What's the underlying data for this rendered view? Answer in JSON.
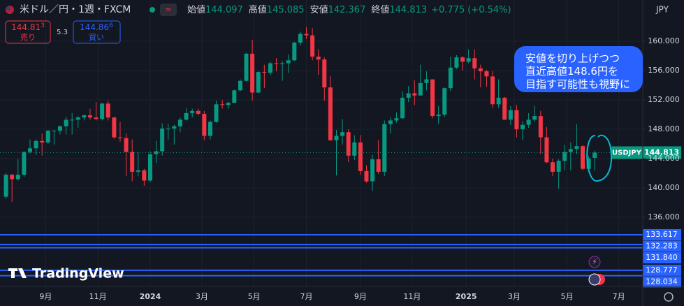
{
  "header": {
    "symbol": "米ドル／円・1週・FXCM",
    "ohlc": [
      {
        "label": "始値",
        "value": 144.097
      },
      {
        "label": "高値",
        "value": 145.085
      },
      {
        "label": "安値",
        "value": 142.367
      },
      {
        "label": "終値",
        "value": 144.813
      }
    ],
    "change": {
      "value": 0.775,
      "label": "+0.775"
    },
    "change_pct": {
      "value": 0.54,
      "label": "(+0.54%)"
    },
    "currency": "JPY"
  },
  "trade": {
    "sell": {
      "price": 144.813,
      "label": "売り"
    },
    "spread": 5.3,
    "buy": {
      "price": 144.866,
      "label": "買い"
    }
  },
  "watermark": "TradingView",
  "chart_data": {
    "type": "candlestick",
    "annotation": [
      "安値を切り上げつつ",
      "直近高値148.6円を",
      "目指す可能性も視野に"
    ],
    "current_price": {
      "symbol": "USDJPY",
      "value": 144.813
    },
    "levels": [
      133.617,
      132.283,
      {
        "value": 131.84,
        "label": "131.840"
      },
      128.777,
      128.034
    ],
    "up_color": "#089981",
    "down_color": "#f23645",
    "level_color": "#2962ff",
    "grid": true,
    "ylim": [
      126.571,
      165.619
    ],
    "yticks": [
      {
        "value": 160,
        "label": "160.000"
      },
      {
        "value": 156,
        "label": "156.000"
      },
      {
        "value": 152,
        "label": "152.000"
      },
      {
        "value": 148,
        "label": "148.000"
      },
      {
        "value": 144,
        "label": "144.000"
      },
      {
        "value": 140,
        "label": "140.000"
      },
      {
        "value": 136,
        "label": "136.000"
      }
    ],
    "xlim": [
      -1,
      106
    ],
    "xticks": [
      {
        "value": 6.6,
        "label": "9月"
      },
      {
        "value": 15.3,
        "label": "11月"
      },
      {
        "value": 24,
        "label": "2024"
      },
      {
        "value": 32.6,
        "label": "3月"
      },
      {
        "value": 41.3,
        "label": "5月"
      },
      {
        "value": 50,
        "label": "7月"
      },
      {
        "value": 59,
        "label": "9月"
      },
      {
        "value": 67.6,
        "label": "11月"
      },
      {
        "value": 76.6,
        "label": "2025"
      },
      {
        "value": 84.6,
        "label": "3月"
      },
      {
        "value": 93.4,
        "label": "5月"
      },
      {
        "value": 102,
        "label": "7月"
      }
    ],
    "candles": {
      "open": [
        138.8,
        141.8,
        141.2,
        141.8,
        144.9,
        145.4,
        146.4,
        146.2,
        147.8,
        147.8,
        148.4,
        149.3,
        149.3,
        149.6,
        149.9,
        149.6,
        149.4,
        151.5,
        149.6,
        146.9,
        146.8,
        144.9,
        142.2,
        142.4,
        141.0,
        144.6,
        145.0,
        148.1,
        148.1,
        148.4,
        149.3,
        150.2,
        150.5,
        150.1,
        147.1,
        149.0,
        151.4,
        151.3,
        151.6,
        153.3,
        154.6,
        158.3,
        153.0,
        155.8,
        155.7,
        157.0,
        156.9,
        157.0,
        157.4,
        159.8,
        161.0,
        160.8,
        157.9,
        157.5,
        153.7,
        146.5,
        147.1,
        147.6,
        144.4,
        146.2,
        142.3,
        140.9,
        143.9,
        142.2,
        148.7,
        149.2,
        149.5,
        152.3,
        152.9,
        152.6,
        154.3,
        154.8,
        149.8,
        150.0,
        153.6,
        156.4,
        157.8,
        157.2,
        157.7,
        156.3,
        155.9,
        155.2,
        151.4,
        152.3,
        149.3,
        150.6,
        148.0,
        148.6,
        149.3,
        149.8,
        146.9,
        143.5,
        142.2,
        143.7,
        144.9,
        145.3,
        145.7,
        142.6,
        144.097
      ],
      "high": [
        142.0,
        141.9,
        143.9,
        145.0,
        146.6,
        146.6,
        147.4,
        147.9,
        147.9,
        148.5,
        149.7,
        150.2,
        149.8,
        150.0,
        150.8,
        151.7,
        151.6,
        151.9,
        149.7,
        149.0,
        147.4,
        146.6,
        144.9,
        142.6,
        145.0,
        146.4,
        148.8,
        148.7,
        148.6,
        149.6,
        150.9,
        150.8,
        150.8,
        150.5,
        149.2,
        151.9,
        152.0,
        151.8,
        153.4,
        154.8,
        158.4,
        160.2,
        155.9,
        156.8,
        157.2,
        157.7,
        157.3,
        158.2,
        159.9,
        161.3,
        161.95,
        161.8,
        158.9,
        157.8,
        155.2,
        147.9,
        149.4,
        148.0,
        147.2,
        147.2,
        143.1,
        144.5,
        146.5,
        149.2,
        149.6,
        150.3,
        153.2,
        153.9,
        154.7,
        156.8,
        155.9,
        154.8,
        151.2,
        153.7,
        157.9,
        158.1,
        158.0,
        158.9,
        158.9,
        156.8,
        156.1,
        155.9,
        154.8,
        152.4,
        151.2,
        151.3,
        149.1,
        150.2,
        151.2,
        150.5,
        148.3,
        144.0,
        143.9,
        145.9,
        146.2,
        148.7,
        145.8,
        144.4,
        145.085
      ],
      "low": [
        138.5,
        138.1,
        141.0,
        141.5,
        144.7,
        144.5,
        144.4,
        146.0,
        145.9,
        147.3,
        147.3,
        147.3,
        148.2,
        149.2,
        149.3,
        149.2,
        149.2,
        149.2,
        146.7,
        146.3,
        141.6,
        140.9,
        141.6,
        140.3,
        140.8,
        143.4,
        144.4,
        146.6,
        145.9,
        147.6,
        149.2,
        149.6,
        149.9,
        146.5,
        146.6,
        148.9,
        150.8,
        150.8,
        151.6,
        153.2,
        154.5,
        151.9,
        152.9,
        153.6,
        155.4,
        155.9,
        154.6,
        155.7,
        157.3,
        159.4,
        160.3,
        157.4,
        155.4,
        151.9,
        146.4,
        141.7,
        145.9,
        143.5,
        143.8,
        141.8,
        140.7,
        139.6,
        141.9,
        141.6,
        147.4,
        148.9,
        149.4,
        151.7,
        151.3,
        152.6,
        153.3,
        149.5,
        148.7,
        149.7,
        153.2,
        156.2,
        156.0,
        157.0,
        154.8,
        153.7,
        153.8,
        150.9,
        150.9,
        149.3,
        148.6,
        146.9,
        146.5,
        148.2,
        149.0,
        144.6,
        143.4,
        141.6,
        139.9,
        142.4,
        142.4,
        144.6,
        142.4,
        142.1,
        142.367
      ],
      "close": [
        141.8,
        141.2,
        141.8,
        144.9,
        145.4,
        146.4,
        146.2,
        147.8,
        147.8,
        148.4,
        149.3,
        149.3,
        149.6,
        149.9,
        149.6,
        149.4,
        151.5,
        149.6,
        146.9,
        146.8,
        144.9,
        142.2,
        142.4,
        141.0,
        144.6,
        145.0,
        148.1,
        148.1,
        148.4,
        149.3,
        150.2,
        150.5,
        150.1,
        147.1,
        149.0,
        151.4,
        151.3,
        151.6,
        153.3,
        154.6,
        158.3,
        153.0,
        155.8,
        155.7,
        157.0,
        156.9,
        157.0,
        157.4,
        159.8,
        161.0,
        160.8,
        157.9,
        157.5,
        153.7,
        146.5,
        147.1,
        147.6,
        144.4,
        146.2,
        142.3,
        140.9,
        143.9,
        142.2,
        148.7,
        149.2,
        149.5,
        152.3,
        152.9,
        152.6,
        154.3,
        154.8,
        149.8,
        150.0,
        153.6,
        156.4,
        157.8,
        157.2,
        157.7,
        156.3,
        155.9,
        155.2,
        151.4,
        152.3,
        149.3,
        150.6,
        148.0,
        148.6,
        149.3,
        149.8,
        146.9,
        143.5,
        142.2,
        143.7,
        144.9,
        145.3,
        145.7,
        142.6,
        144.04,
        144.813
      ]
    }
  }
}
